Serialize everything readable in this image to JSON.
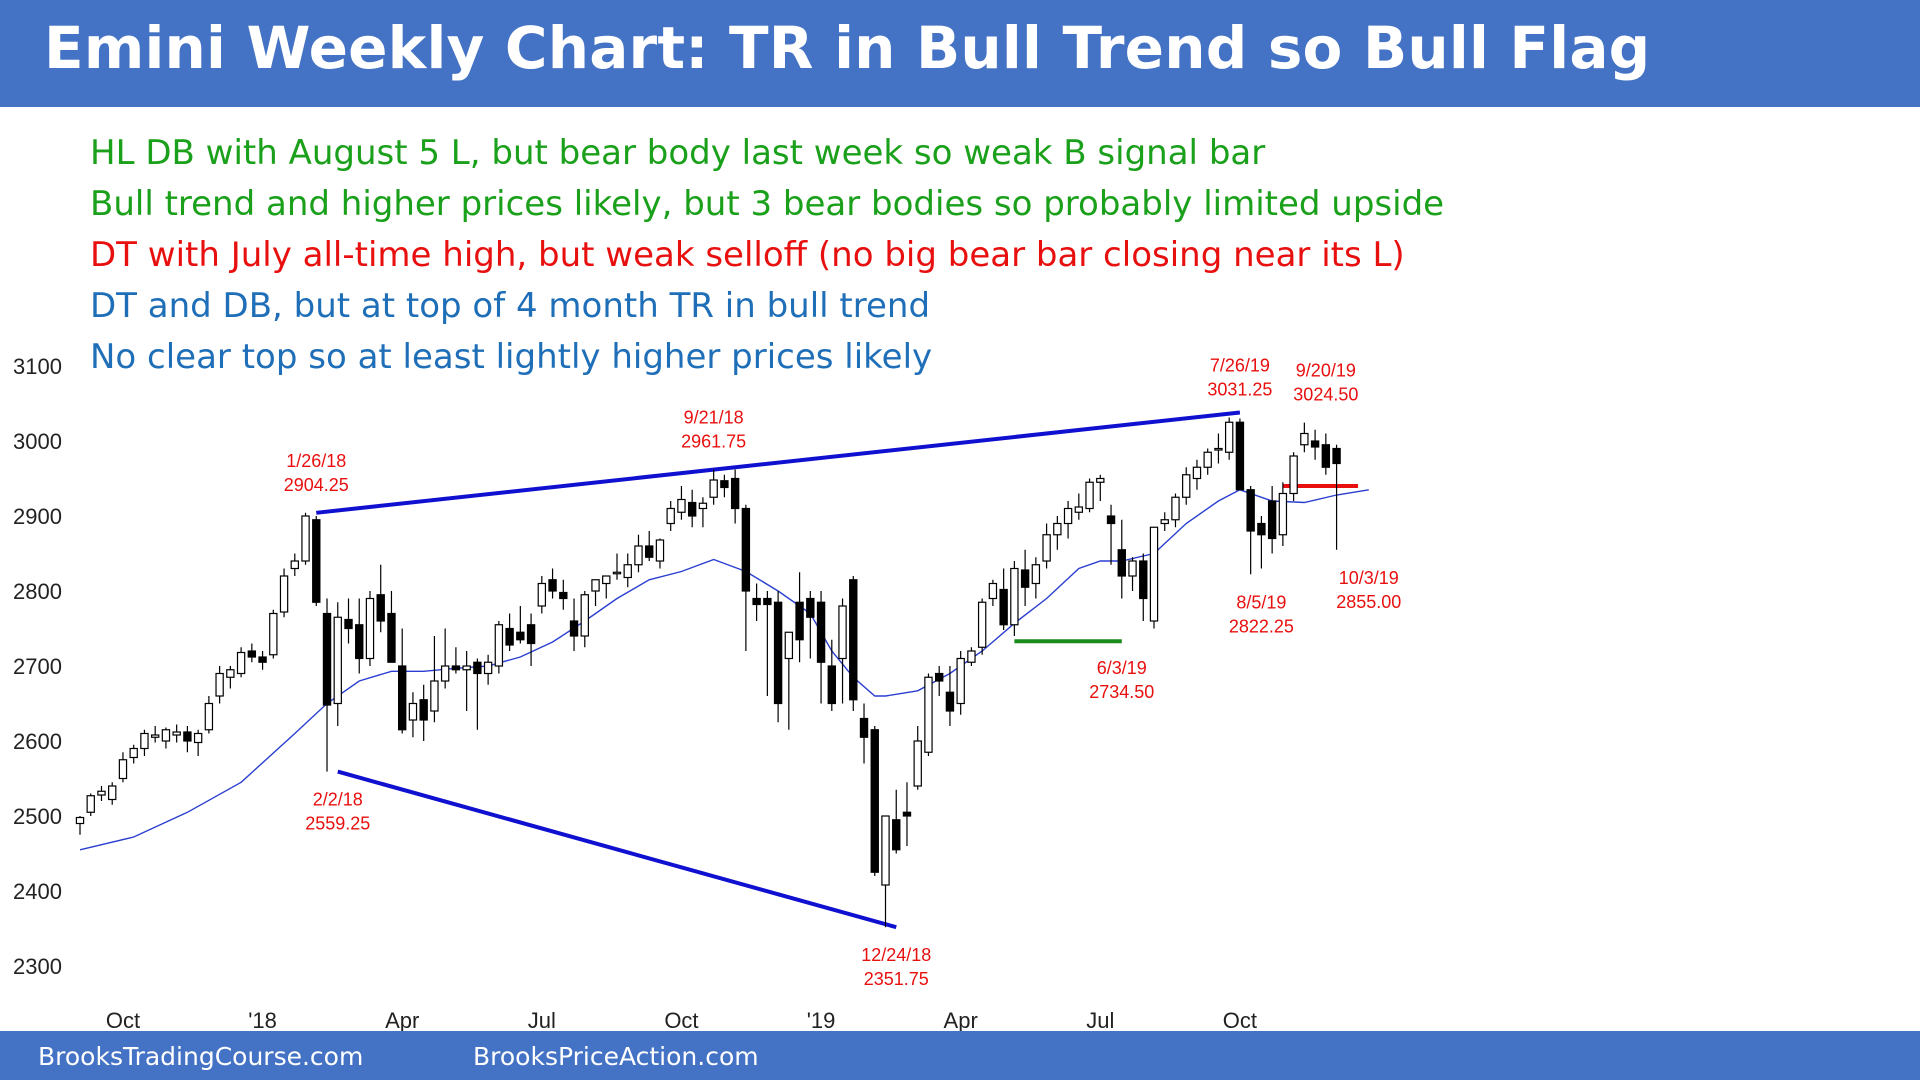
{
  "title": "Emini Weekly Chart: TR in Bull Trend so Bull Flag",
  "footer": {
    "left": "BrooksTradingCourse.com",
    "right": "BrooksPriceAction.com"
  },
  "notes": [
    {
      "text": "HL DB with August 5 L, but bear body last week so weak B signal bar",
      "color": "#1AA01A"
    },
    {
      "text": "Bull trend and higher prices likely, but 3 bear bodies so probably limited upside",
      "color": "#1AA01A"
    },
    {
      "text": "DT with July all-time high, but weak selloff (no big bear bar closing near its L)",
      "color": "#E8100F"
    },
    {
      "text": "DT and DB, but at top of 4 month TR in bull trend",
      "color": "#1F6FB8"
    },
    {
      "text": "No clear top so at least lightly higher prices likely",
      "color": "#1F6FB8"
    }
  ],
  "colors": {
    "header": "#4472C4",
    "trendline": "#1010D0",
    "ema": "#2A3FD0",
    "support": "#1A8A1A",
    "resistance": "#E8100F",
    "label": "#E8100F"
  },
  "chart_data": {
    "type": "candlestick",
    "title": "Emini Weekly Chart: TR in Bull Trend so Bull Flag",
    "ylim": [
      2300,
      3100
    ],
    "yticks": [
      2300,
      2400,
      2500,
      2600,
      2700,
      2800,
      2900,
      3000,
      3100
    ],
    "xticks": [
      {
        "label": "Oct",
        "bar": 4
      },
      {
        "label": "'18",
        "bar": 17
      },
      {
        "label": "Apr",
        "bar": 30
      },
      {
        "label": "Jul",
        "bar": 43
      },
      {
        "label": "Oct",
        "bar": 56
      },
      {
        "label": "'19",
        "bar": 69
      },
      {
        "label": "Apr",
        "bar": 82
      },
      {
        "label": "Jul",
        "bar": 95
      },
      {
        "label": "Oct",
        "bar": 108
      }
    ],
    "grid": false,
    "bars": [
      [
        2490,
        2500,
        2475,
        2498
      ],
      [
        2505,
        2530,
        2500,
        2527
      ],
      [
        2528,
        2540,
        2520,
        2533
      ],
      [
        2522,
        2545,
        2515,
        2540
      ],
      [
        2550,
        2585,
        2545,
        2575
      ],
      [
        2578,
        2595,
        2570,
        2590
      ],
      [
        2590,
        2615,
        2580,
        2610
      ],
      [
        2605,
        2620,
        2598,
        2608
      ],
      [
        2600,
        2618,
        2590,
        2615
      ],
      [
        2608,
        2622,
        2598,
        2612
      ],
      [
        2612,
        2620,
        2585,
        2600
      ],
      [
        2598,
        2615,
        2580,
        2610
      ],
      [
        2615,
        2660,
        2610,
        2650
      ],
      [
        2660,
        2700,
        2650,
        2690
      ],
      [
        2685,
        2700,
        2670,
        2695
      ],
      [
        2690,
        2725,
        2685,
        2718
      ],
      [
        2720,
        2730,
        2705,
        2712
      ],
      [
        2712,
        2720,
        2695,
        2705
      ],
      [
        2715,
        2775,
        2710,
        2770
      ],
      [
        2772,
        2830,
        2765,
        2820
      ],
      [
        2830,
        2850,
        2820,
        2840
      ],
      [
        2840,
        2904.25,
        2835,
        2900
      ],
      [
        2895,
        2900,
        2780,
        2785
      ],
      [
        2770,
        2790,
        2559.25,
        2648
      ],
      [
        2650,
        2785,
        2620,
        2765
      ],
      [
        2762,
        2790,
        2730,
        2750
      ],
      [
        2755,
        2790,
        2690,
        2710
      ],
      [
        2710,
        2800,
        2700,
        2790
      ],
      [
        2795,
        2835,
        2745,
        2760
      ],
      [
        2770,
        2800,
        2715,
        2705
      ],
      [
        2700,
        2750,
        2610,
        2615
      ],
      [
        2628,
        2665,
        2605,
        2650
      ],
      [
        2655,
        2675,
        2600,
        2628
      ],
      [
        2640,
        2740,
        2625,
        2680
      ],
      [
        2680,
        2750,
        2670,
        2700
      ],
      [
        2700,
        2725,
        2690,
        2695
      ],
      [
        2695,
        2720,
        2640,
        2700
      ],
      [
        2705,
        2710,
        2615,
        2690
      ],
      [
        2690,
        2715,
        2675,
        2705
      ],
      [
        2700,
        2760,
        2690,
        2755
      ],
      [
        2750,
        2770,
        2720,
        2728
      ],
      [
        2745,
        2780,
        2730,
        2735
      ],
      [
        2755,
        2770,
        2700,
        2730
      ],
      [
        2780,
        2820,
        2770,
        2810
      ],
      [
        2815,
        2830,
        2790,
        2800
      ],
      [
        2798,
        2815,
        2775,
        2790
      ],
      [
        2760,
        2790,
        2720,
        2740
      ],
      [
        2740,
        2800,
        2725,
        2795
      ],
      [
        2800,
        2815,
        2780,
        2815
      ],
      [
        2810,
        2820,
        2790,
        2820
      ],
      [
        2825,
        2850,
        2815,
        2825
      ],
      [
        2818,
        2850,
        2805,
        2835
      ],
      [
        2835,
        2875,
        2825,
        2860
      ],
      [
        2860,
        2880,
        2840,
        2845
      ],
      [
        2840,
        2870,
        2830,
        2868
      ],
      [
        2890,
        2920,
        2880,
        2910
      ],
      [
        2905,
        2940,
        2895,
        2922
      ],
      [
        2918,
        2935,
        2885,
        2900
      ],
      [
        2910,
        2925,
        2885,
        2917
      ],
      [
        2925,
        2961.75,
        2915,
        2948
      ],
      [
        2947,
        2955,
        2925,
        2938
      ],
      [
        2950,
        2962,
        2890,
        2910
      ],
      [
        2910,
        2915,
        2720,
        2800
      ],
      [
        2790,
        2810,
        2760,
        2782
      ],
      [
        2790,
        2800,
        2660,
        2782
      ],
      [
        2785,
        2800,
        2625,
        2650
      ],
      [
        2710,
        2745,
        2615,
        2745
      ],
      [
        2785,
        2825,
        2705,
        2735
      ],
      [
        2790,
        2800,
        2710,
        2765
      ],
      [
        2785,
        2800,
        2650,
        2705
      ],
      [
        2700,
        2735,
        2640,
        2650
      ],
      [
        2710,
        2790,
        2650,
        2780
      ],
      [
        2815,
        2820,
        2640,
        2655
      ],
      [
        2630,
        2650,
        2570,
        2605
      ],
      [
        2615,
        2620,
        2420,
        2425
      ],
      [
        2408,
        2500,
        2351.75,
        2500
      ],
      [
        2495,
        2535,
        2450,
        2455
      ],
      [
        2505,
        2545,
        2460,
        2500
      ],
      [
        2540,
        2620,
        2535,
        2600
      ],
      [
        2585,
        2690,
        2580,
        2685
      ],
      [
        2690,
        2700,
        2660,
        2680
      ],
      [
        2665,
        2700,
        2620,
        2640
      ],
      [
        2650,
        2720,
        2635,
        2710
      ],
      [
        2705,
        2725,
        2700,
        2720
      ],
      [
        2725,
        2790,
        2715,
        2785
      ],
      [
        2790,
        2815,
        2780,
        2810
      ],
      [
        2802,
        2830,
        2748,
        2755
      ],
      [
        2755,
        2840,
        2740,
        2830
      ],
      [
        2828,
        2855,
        2780,
        2805
      ],
      [
        2810,
        2845,
        2790,
        2835
      ],
      [
        2840,
        2890,
        2830,
        2875
      ],
      [
        2875,
        2900,
        2855,
        2890
      ],
      [
        2890,
        2920,
        2870,
        2910
      ],
      [
        2905,
        2930,
        2895,
        2912
      ],
      [
        2910,
        2950,
        2905,
        2945
      ],
      [
        2945,
        2955,
        2920,
        2950
      ],
      [
        2900,
        2915,
        2835,
        2890
      ],
      [
        2855,
        2895,
        2790,
        2820
      ],
      [
        2820,
        2845,
        2800,
        2840
      ],
      [
        2840,
        2850,
        2760,
        2790
      ],
      [
        2760,
        2885,
        2750,
        2885
      ],
      [
        2890,
        2905,
        2880,
        2895
      ],
      [
        2895,
        2930,
        2885,
        2925
      ],
      [
        2925,
        2965,
        2915,
        2955
      ],
      [
        2950,
        2975,
        2935,
        2965
      ],
      [
        2965,
        2990,
        2955,
        2985
      ],
      [
        2990,
        3010,
        2970,
        2990
      ],
      [
        2985,
        3031.25,
        2975,
        3025
      ],
      [
        3025,
        3030,
        2935,
        2935
      ],
      [
        2935,
        2940,
        2822.25,
        2880
      ],
      [
        2890,
        2900,
        2830,
        2875
      ],
      [
        2920,
        2940,
        2850,
        2870
      ],
      [
        2875,
        2945,
        2860,
        2930
      ],
      [
        2930,
        2985,
        2920,
        2980
      ],
      [
        2995,
        3024.5,
        2985,
        3010
      ],
      [
        3000,
        3015,
        2975,
        2992
      ],
      [
        2995,
        3010,
        2955,
        2965
      ],
      [
        2990,
        2995,
        2855,
        2970
      ]
    ],
    "ema": [
      [
        0,
        2455
      ],
      [
        5,
        2472
      ],
      [
        10,
        2505
      ],
      [
        15,
        2545
      ],
      [
        20,
        2610
      ],
      [
        23,
        2650
      ],
      [
        26,
        2680
      ],
      [
        29,
        2693
      ],
      [
        32,
        2693
      ],
      [
        35,
        2697
      ],
      [
        38,
        2700
      ],
      [
        41,
        2712
      ],
      [
        44,
        2732
      ],
      [
        47,
        2760
      ],
      [
        50,
        2790
      ],
      [
        53,
        2815
      ],
      [
        56,
        2826
      ],
      [
        59,
        2842
      ],
      [
        62,
        2826
      ],
      [
        65,
        2800
      ],
      [
        68,
        2770
      ],
      [
        70,
        2720
      ],
      [
        72,
        2685
      ],
      [
        74,
        2660
      ],
      [
        75,
        2660
      ],
      [
        78,
        2667
      ],
      [
        81,
        2690
      ],
      [
        84,
        2720
      ],
      [
        87,
        2757
      ],
      [
        90,
        2790
      ],
      [
        93,
        2830
      ],
      [
        95,
        2840
      ],
      [
        97,
        2840
      ],
      [
        100,
        2850
      ],
      [
        103,
        2890
      ],
      [
        106,
        2920
      ],
      [
        108,
        2935
      ],
      [
        111,
        2920
      ],
      [
        114,
        2918
      ],
      [
        117,
        2928
      ],
      [
        120,
        2935
      ]
    ],
    "lines": [
      {
        "name": "upper-trendline",
        "from": [
          22,
          2904.25
        ],
        "to": [
          108,
          3038
        ]
      },
      {
        "name": "lower-trendline",
        "from": [
          24,
          2559.25
        ],
        "to": [
          76,
          2351.75
        ]
      },
      {
        "name": "support-line",
        "from": [
          87,
          2733
        ],
        "to": [
          97,
          2733
        ]
      },
      {
        "name": "resistance-line",
        "from": [
          112,
          2940
        ],
        "to": [
          119,
          2940
        ]
      }
    ],
    "annotations": [
      {
        "date": "1/26/18",
        "price": "2904.25",
        "bar": 22,
        "pos": "above",
        "value": 2904.25
      },
      {
        "date": "2/2/18",
        "price": "2559.25",
        "bar": 24,
        "pos": "below",
        "value": 2559.25
      },
      {
        "date": "9/21/18",
        "price": "2961.75",
        "bar": 59,
        "pos": "above",
        "value": 2961.75
      },
      {
        "date": "12/24/18",
        "price": "2351.75",
        "bar": 76,
        "pos": "below",
        "value": 2351.75
      },
      {
        "date": "6/3/19",
        "price": "2734.50",
        "bar": 97,
        "pos": "below",
        "value": 2734.5
      },
      {
        "date": "7/26/19",
        "price": "3031.25",
        "bar": 108,
        "pos": "above",
        "value": 3031.25
      },
      {
        "date": "8/5/19",
        "price": "2822.25",
        "bar": 110,
        "pos": "below",
        "value": 2822.25
      },
      {
        "date": "9/20/19",
        "price": "3024.50",
        "bar": 116,
        "pos": "above",
        "value": 3024.5
      },
      {
        "date": "10/3/19",
        "price": "2855.00",
        "bar": 120,
        "pos": "below",
        "value": 2855.0
      }
    ]
  }
}
